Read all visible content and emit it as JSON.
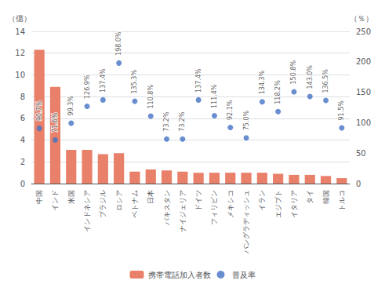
{
  "chart_data": {
    "type": "bar",
    "categories": [
      "中国",
      "インド",
      "米国",
      "インドネシア",
      "ブラジル",
      "ロシア",
      "ベトナム",
      "日本",
      "パキスタン",
      "ナイジェリア",
      "ドイツ",
      "フィリピン",
      "メキシコ",
      "バングラディッシュ",
      "イラン",
      "エジプト",
      "イタリア",
      "タイ",
      "韓国",
      "トルコ"
    ],
    "series": [
      {
        "name": "携帯電話加入者数",
        "type": "bar",
        "color": "#e8806a",
        "values": [
          12.3,
          8.9,
          3.1,
          3.1,
          2.7,
          2.8,
          1.1,
          1.3,
          1.2,
          1.1,
          1.0,
          1.0,
          1.0,
          1.0,
          1.0,
          0.9,
          0.8,
          0.8,
          0.7,
          0.5
        ]
      },
      {
        "name": "普及率",
        "type": "scatter",
        "axis": "y2",
        "color": "#4472c4",
        "marker": "circle",
        "data_labels": true,
        "values": [
          90.7,
          71.6,
          99.3,
          126.9,
          137.4,
          198.0,
          135.3,
          110.8,
          73.2,
          73.2,
          137.4,
          111.4,
          92.1,
          75.0,
          134.3,
          118.2,
          150.8,
          143.0,
          136.5,
          91.5
        ],
        "value_labels": [
          "90.7%",
          "71.6%",
          "99.3%",
          "126.9%",
          "137.4%",
          "198.0%",
          "135.3%",
          "110.8%",
          "73.2%",
          "73.2%",
          "137.4%",
          "111.4%",
          "92.1%",
          "75.0%",
          "134.3%",
          "118.2%",
          "150.8%",
          "143.0%",
          "136.5%",
          "91.5%"
        ]
      }
    ],
    "ylabel": "（億）",
    "y2label": "（％）",
    "ylim": [
      0,
      14
    ],
    "yticks": [
      0,
      2,
      4,
      6,
      8,
      10,
      12,
      14
    ],
    "y2lim": [
      0,
      250
    ],
    "y2ticks": [
      0,
      50,
      100,
      150,
      200,
      250
    ],
    "grid": true,
    "legend": "bottom"
  }
}
